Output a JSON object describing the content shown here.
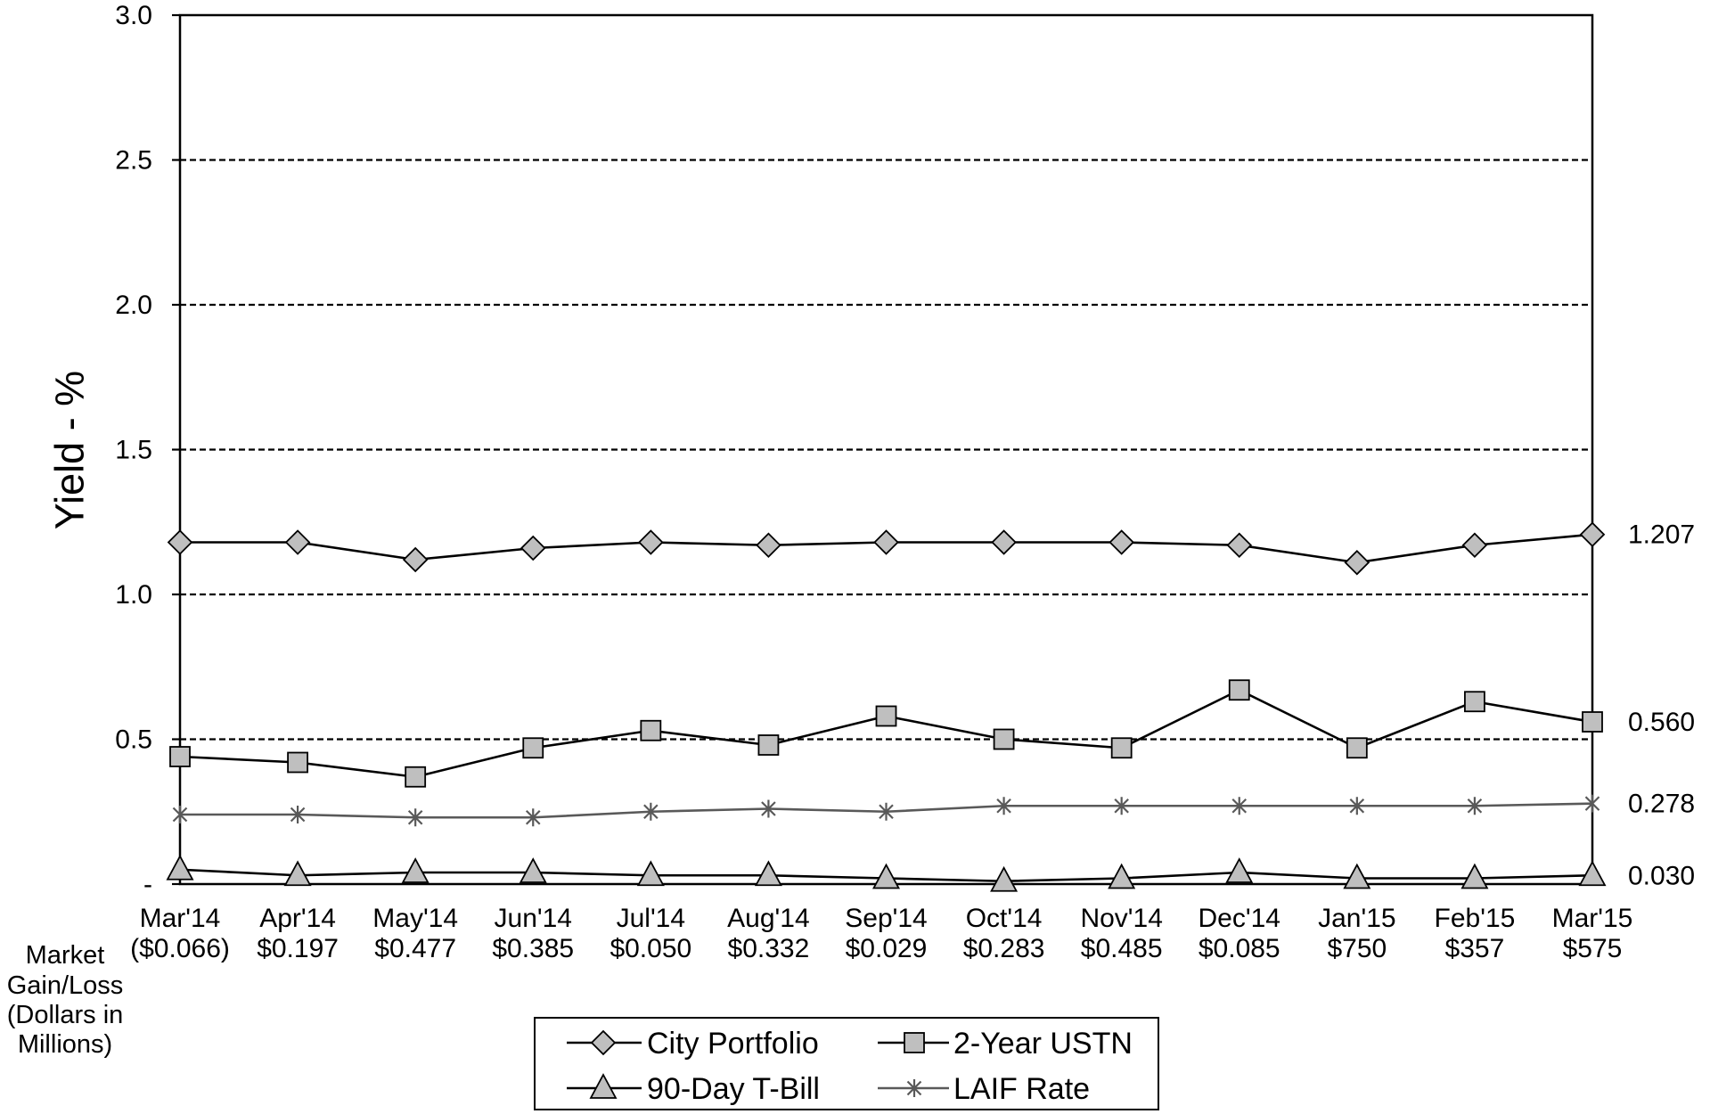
{
  "chart_data": {
    "type": "line",
    "ylabel": "Yield - %",
    "ylim": [
      0,
      3.0
    ],
    "yticks": [
      0,
      0.5,
      1.0,
      1.5,
      2.0,
      2.5,
      3.0
    ],
    "ytick_labels": [
      "-",
      "0.5",
      "1.0",
      "1.5",
      "2.0",
      "2.5",
      "3.0"
    ],
    "grid": true,
    "legend_placement": "bottom",
    "categories": [
      "Mar'14",
      "Apr'14",
      "May'14",
      "Jun'14",
      "Jul'14",
      "Aug'14",
      "Sep'14",
      "Oct'14",
      "Nov'14",
      "Dec'14",
      "Jan'15",
      "Feb'15",
      "Mar'15"
    ],
    "market_gain_loss_label": [
      "Market",
      "Gain/Loss",
      "(Dollars in",
      "Millions)"
    ],
    "market_gain_loss": [
      "($0.066)",
      "$0.197",
      "$0.477",
      "$0.385",
      "$0.050",
      "$0.332",
      "$0.029",
      "$0.283",
      "$0.485",
      "$0.085",
      "$750",
      "$357",
      "$575"
    ],
    "series": [
      {
        "name": "City Portfolio",
        "marker": "diamond",
        "line_color": "#000000",
        "marker_fill": "#bfbfbf",
        "marker_stroke": "#000000",
        "values": [
          1.18,
          1.18,
          1.12,
          1.16,
          1.18,
          1.17,
          1.18,
          1.18,
          1.18,
          1.17,
          1.11,
          1.17,
          1.207
        ],
        "end_label": "1.207"
      },
      {
        "name": "2-Year USTN",
        "marker": "square",
        "line_color": "#000000",
        "marker_fill": "#bfbfbf",
        "marker_stroke": "#000000",
        "values": [
          0.44,
          0.42,
          0.37,
          0.47,
          0.53,
          0.48,
          0.58,
          0.5,
          0.47,
          0.67,
          0.47,
          0.63,
          0.56
        ],
        "end_label": "0.560"
      },
      {
        "name": "90-Day T-Bill",
        "marker": "triangle",
        "line_color": "#000000",
        "marker_fill": "#bfbfbf",
        "marker_stroke": "#000000",
        "values": [
          0.05,
          0.03,
          0.04,
          0.04,
          0.03,
          0.03,
          0.02,
          0.01,
          0.02,
          0.04,
          0.02,
          0.02,
          0.03
        ],
        "end_label": "0.030"
      },
      {
        "name": "LAIF Rate",
        "marker": "asterisk",
        "line_color": "#595959",
        "marker_fill": "#595959",
        "marker_stroke": "#595959",
        "values": [
          0.24,
          0.24,
          0.23,
          0.23,
          0.25,
          0.26,
          0.25,
          0.27,
          0.27,
          0.27,
          0.27,
          0.27,
          0.278
        ],
        "end_label": "0.278"
      }
    ]
  }
}
